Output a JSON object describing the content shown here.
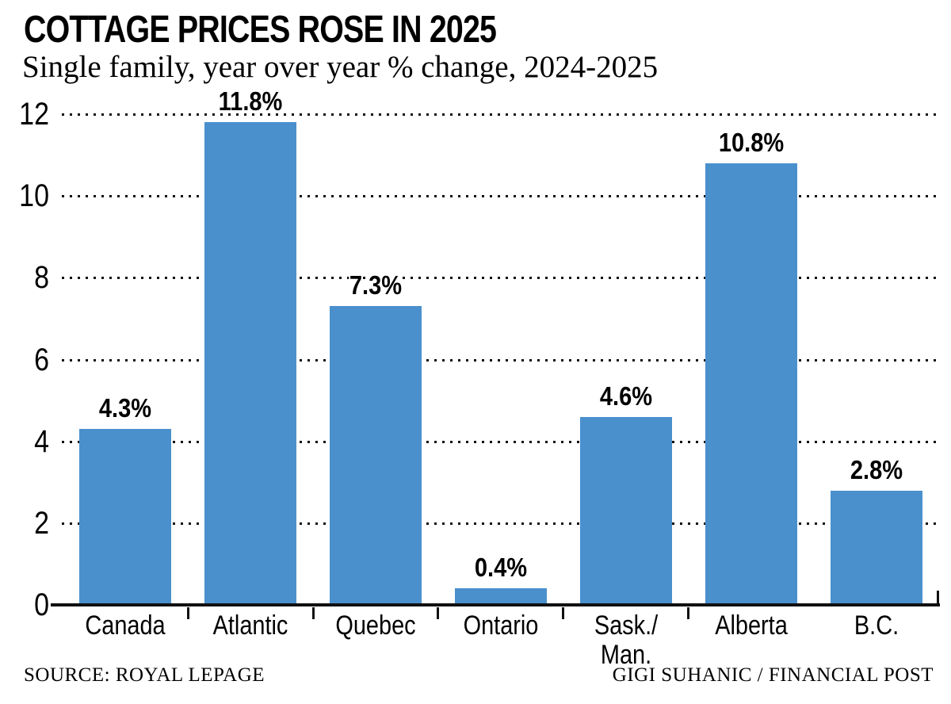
{
  "header": {
    "title": "COTTAGE PRICES ROSE IN 2025",
    "subtitle": "Single family, year over year % change, 2024-2025"
  },
  "footer": {
    "source": "SOURCE: ROYAL LEPAGE",
    "credit": "GIGI SUHANIC / FINANCIAL POST"
  },
  "chart_data": {
    "type": "bar",
    "title": "COTTAGE PRICES ROSE IN 2025",
    "subtitle": "Single family, year over year % change, 2024-2025",
    "categories": [
      "Canada",
      "Atlantic",
      "Quebec",
      "Ontario",
      "Sask./\nMan.",
      "Alberta",
      "B.C."
    ],
    "values": [
      4.3,
      11.8,
      7.3,
      0.4,
      4.6,
      10.8,
      2.8
    ],
    "value_labels": [
      "4.3%",
      "11.8%",
      "7.3%",
      "0.4%",
      "4.6%",
      "10.8%",
      "2.8%"
    ],
    "xlabel": "",
    "ylabel": "",
    "ylim": [
      0,
      12
    ],
    "yticks": [
      0,
      2,
      4,
      6,
      8,
      10,
      12
    ],
    "grid": "horizontal-dotted",
    "legend": "none",
    "bar_color": "#4a90cd",
    "axis_color": "#111111",
    "text_color": "#000000"
  }
}
